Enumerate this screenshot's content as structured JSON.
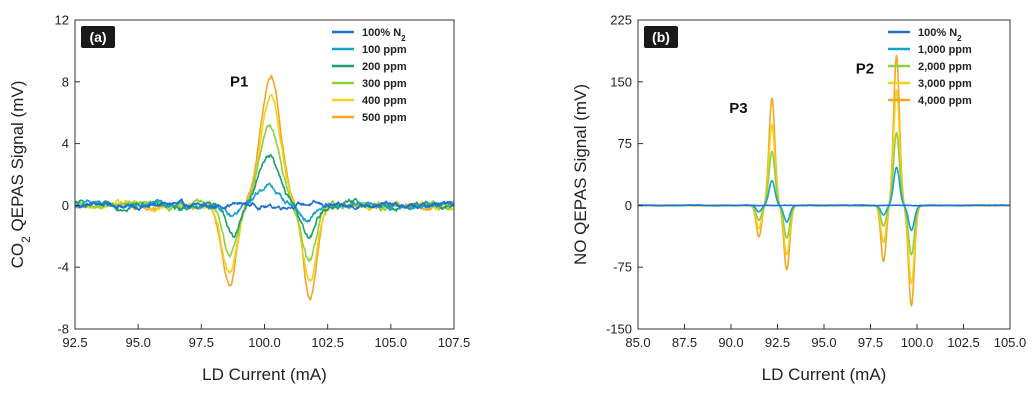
{
  "chart_data": [
    {
      "type": "line",
      "panel_label": "(a)",
      "xlabel": "LD Current (mA)",
      "ylabel_main": "CO",
      "ylabel_sub": "2",
      "ylabel_rest": " QEPAS Signal (mV)",
      "xlim": [
        92.5,
        107.5
      ],
      "ylim": [
        -8,
        12
      ],
      "xticks": [
        92.5,
        95.0,
        97.5,
        100.0,
        102.5,
        105.0,
        107.5
      ],
      "yticks": [
        -8,
        -4,
        0,
        4,
        8,
        12
      ],
      "tick_decimals_x": 1,
      "legend_position": "top-right",
      "annotations": [
        {
          "text": "P1",
          "x": 99.0,
          "y": 7.7
        }
      ],
      "series": [
        {
          "name": "100% N",
          "sub": "2",
          "color": "#1f6fd1",
          "noise": 0.15
        },
        {
          "name": "100 ppm",
          "color": "#17a2c9",
          "noise": 0.18
        },
        {
          "name": "200 ppm",
          "color": "#1e9e6a",
          "noise": 0.18
        },
        {
          "name": "300 ppm",
          "color": "#8ed040",
          "noise": 0.18
        },
        {
          "name": "400 ppm",
          "color": "#f2d21a",
          "noise": 0.18
        },
        {
          "name": "500 ppm",
          "color": "#f5a623",
          "noise": 0.18
        }
      ],
      "peaks": [
        {
          "series": "100 ppm",
          "components": [
            {
              "center": 100.1,
              "width": 0.55,
              "amp": 1.4
            },
            {
              "center": 98.7,
              "width": 0.35,
              "amp": -0.9
            },
            {
              "center": 101.7,
              "width": 0.38,
              "amp": -1.1
            }
          ]
        },
        {
          "series": "200 ppm",
          "components": [
            {
              "center": 100.15,
              "width": 0.55,
              "amp": 3.3
            },
            {
              "center": 98.75,
              "width": 0.35,
              "amp": -2.0
            },
            {
              "center": 101.75,
              "width": 0.38,
              "amp": -2.1
            }
          ]
        },
        {
          "series": "300 ppm",
          "components": [
            {
              "center": 100.2,
              "width": 0.55,
              "amp": 5.1
            },
            {
              "center": 98.65,
              "width": 0.38,
              "amp": -3.2
            },
            {
              "center": 101.75,
              "width": 0.38,
              "amp": -3.5
            }
          ]
        },
        {
          "series": "400 ppm",
          "components": [
            {
              "center": 100.25,
              "width": 0.55,
              "amp": 6.9
            },
            {
              "center": 98.6,
              "width": 0.4,
              "amp": -4.3
            },
            {
              "center": 101.8,
              "width": 0.38,
              "amp": -4.8
            }
          ]
        },
        {
          "series": "500 ppm",
          "components": [
            {
              "center": 100.25,
              "width": 0.55,
              "amp": 8.4
            },
            {
              "center": 98.6,
              "width": 0.4,
              "amp": -5.1
            },
            {
              "center": 101.8,
              "width": 0.38,
              "amp": -5.9
            }
          ]
        }
      ]
    },
    {
      "type": "line",
      "panel_label": "(b)",
      "xlabel": "LD Current (mA)",
      "ylabel_main": "NO QEPAS Signal (mV)",
      "ylabel_sub": "",
      "ylabel_rest": "",
      "xlim": [
        85.0,
        105.0
      ],
      "ylim": [
        -150,
        225
      ],
      "xticks": [
        85.0,
        87.5,
        90.0,
        92.5,
        95.0,
        97.5,
        100.0,
        102.5,
        105.0
      ],
      "yticks": [
        -150,
        -75,
        0,
        75,
        150,
        225
      ],
      "tick_decimals_x": 1,
      "legend_position": "top-right",
      "annotations": [
        {
          "text": "P3",
          "x": 90.4,
          "y": 112
        },
        {
          "text": "P2",
          "x": 97.2,
          "y": 160
        }
      ],
      "series": [
        {
          "name": "100% N",
          "sub": "2",
          "color": "#1f6fd1",
          "noise": 0.3
        },
        {
          "name": "1,000 ppm",
          "color": "#17a2c9",
          "noise": 0.3
        },
        {
          "name": "2,000 ppm",
          "color": "#8ed040",
          "noise": 0.3
        },
        {
          "name": "3,000 ppm",
          "color": "#f2d21a",
          "noise": 0.3
        },
        {
          "name": "4,000 ppm",
          "color": "#f5a623",
          "noise": 0.3
        }
      ],
      "peaks": [
        {
          "series": "1,000 ppm",
          "components": [
            {
              "center": 92.2,
              "width": 0.22,
              "amp": 30
            },
            {
              "center": 91.5,
              "width": 0.2,
              "amp": -8
            },
            {
              "center": 93.0,
              "width": 0.22,
              "amp": -20
            },
            {
              "center": 98.9,
              "width": 0.22,
              "amp": 46
            },
            {
              "center": 98.2,
              "width": 0.2,
              "amp": -12
            },
            {
              "center": 99.7,
              "width": 0.22,
              "amp": -30
            }
          ]
        },
        {
          "series": "2,000 ppm",
          "components": [
            {
              "center": 92.2,
              "width": 0.22,
              "amp": 65
            },
            {
              "center": 91.5,
              "width": 0.2,
              "amp": -18
            },
            {
              "center": 93.0,
              "width": 0.22,
              "amp": -40
            },
            {
              "center": 98.9,
              "width": 0.22,
              "amp": 88
            },
            {
              "center": 98.2,
              "width": 0.2,
              "amp": -25
            },
            {
              "center": 99.7,
              "width": 0.22,
              "amp": -60
            }
          ]
        },
        {
          "series": "3,000 ppm",
          "components": [
            {
              "center": 92.2,
              "width": 0.22,
              "amp": 98
            },
            {
              "center": 91.5,
              "width": 0.2,
              "amp": -28
            },
            {
              "center": 93.0,
              "width": 0.22,
              "amp": -60
            },
            {
              "center": 98.9,
              "width": 0.22,
              "amp": 140
            },
            {
              "center": 98.2,
              "width": 0.2,
              "amp": -45
            },
            {
              "center": 99.7,
              "width": 0.22,
              "amp": -95
            }
          ]
        },
        {
          "series": "4,000 ppm",
          "components": [
            {
              "center": 92.2,
              "width": 0.22,
              "amp": 130
            },
            {
              "center": 91.5,
              "width": 0.2,
              "amp": -38
            },
            {
              "center": 93.0,
              "width": 0.22,
              "amp": -78
            },
            {
              "center": 98.9,
              "width": 0.22,
              "amp": 182
            },
            {
              "center": 98.2,
              "width": 0.2,
              "amp": -68
            },
            {
              "center": 99.7,
              "width": 0.22,
              "amp": -122
            }
          ]
        }
      ]
    }
  ]
}
